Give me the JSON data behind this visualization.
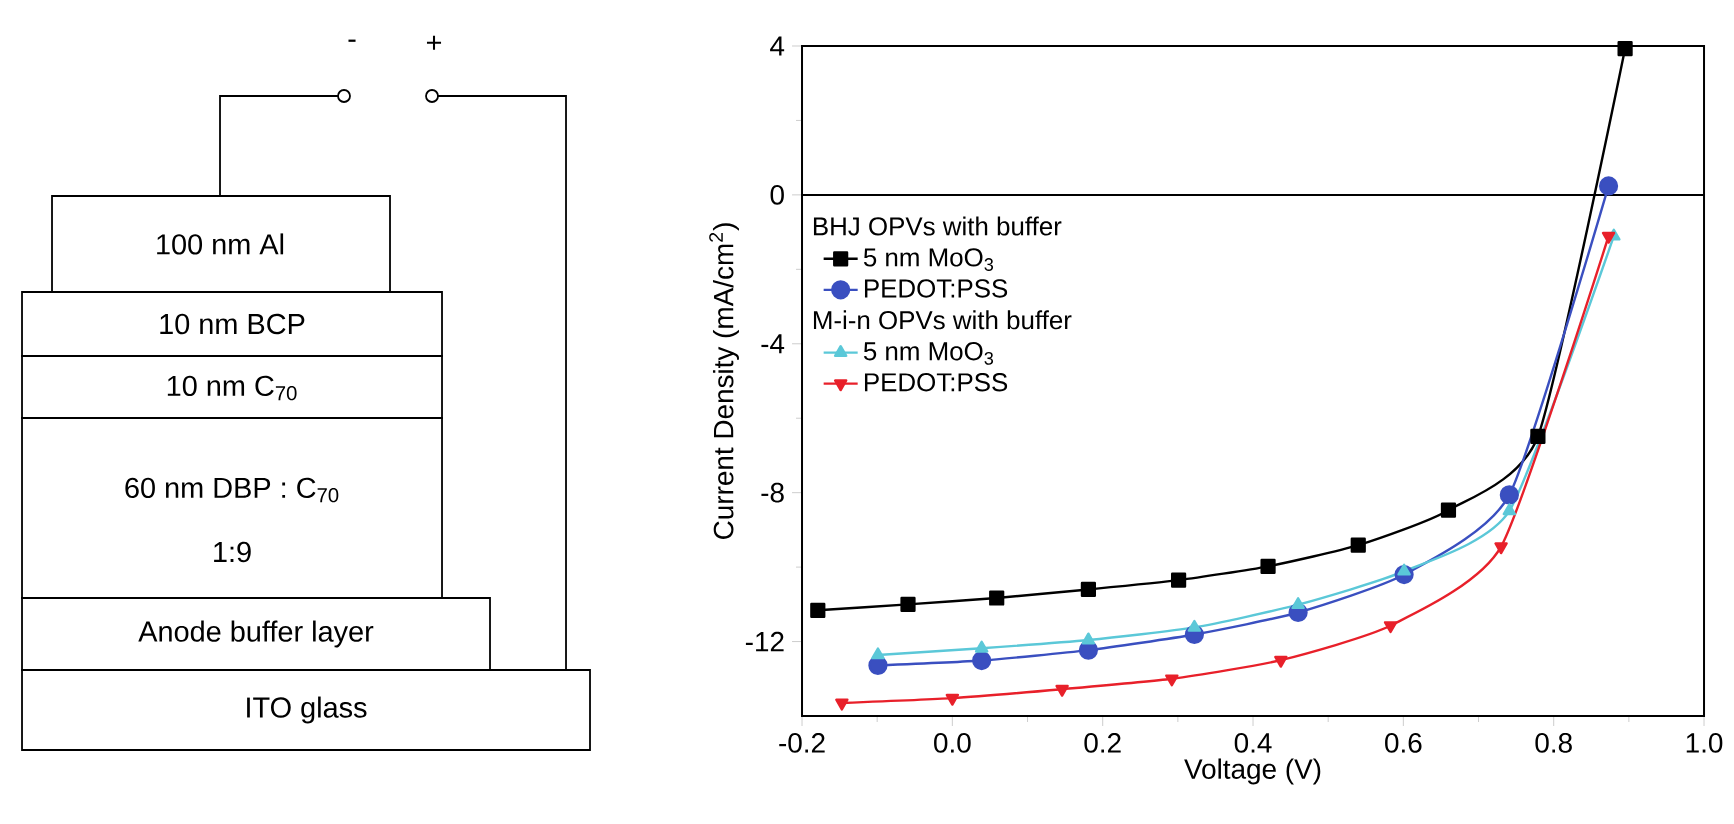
{
  "chart_data": [
    {
      "type": "other",
      "annotations": [
        "100 nm Al",
        "10 nm BCP",
        "10 nm C$_{70}$",
        "60 nm DBP : C$_{70}$",
        "1:9",
        "Anode buffer layer",
        "ITO glass",
        "-",
        "+"
      ]
    },
    {
      "type": "line",
      "xlabel": "Voltage (V)",
      "ylabel": "Current Density (mA/cm$^{2}$)",
      "xlim": [
        -0.2,
        1.0
      ],
      "xticks": [
        {
          "value": -0.2,
          "label": "-0.2"
        },
        {
          "value": 0,
          "label": "0.0"
        },
        0.2,
        0.4,
        0.6,
        0.8,
        {
          "value": 1.0,
          "label": "1.0"
        }
      ],
      "ylim": [
        -14,
        4
      ],
      "yticks": [
        -12,
        -8,
        -4,
        0,
        4
      ],
      "annotations": [
        "BHJ OPVs with buffer",
        "M-i-n OPVs with buffer"
      ],
      "ref_lines": [
        {
          "axis": "y",
          "value": 0,
          "color": "#000000"
        }
      ],
      "legend": "left",
      "grid": false,
      "series": [
        {
          "name": "5 nm MoO$_{3}$",
          "color": "#000000",
          "marker": "square",
          "x": [
            -0.179,
            -0.059,
            0.059,
            0.181,
            0.301,
            0.42,
            0.54,
            0.66,
            0.779,
            0.895
          ],
          "values": [
            -11.16,
            -11.0,
            -10.83,
            -10.6,
            -10.35,
            -9.98,
            -9.41,
            -8.47,
            -6.49,
            3.93
          ]
        },
        {
          "name": "PEDOT:PSS",
          "color": "#3a4fc0",
          "marker": "circle",
          "x": [
            -0.099,
            0.039,
            0.181,
            0.322,
            0.46,
            0.601,
            0.741,
            0.873
          ],
          "values": [
            -12.64,
            -12.51,
            -12.23,
            -11.81,
            -11.22,
            -10.2,
            -8.06,
            0.24
          ]
        },
        {
          "name": "5 nm MoO$_{3}$",
          "color": "#5bc8d8",
          "marker": "triangle",
          "x": [
            -0.099,
            0.039,
            0.181,
            0.322,
            0.46,
            0.601,
            0.741,
            0.88
          ],
          "values": [
            -12.36,
            -12.18,
            -11.96,
            -11.62,
            -11.01,
            -10.11,
            -8.49,
            -1.11
          ]
        },
        {
          "name": "PEDOT:PSS",
          "color": "#e8202a",
          "marker": "triangle-down",
          "x": [
            -0.147,
            0.0,
            0.146,
            0.292,
            0.437,
            0.583,
            0.73,
            0.873
          ],
          "values": [
            -13.65,
            -13.52,
            -13.28,
            -13.0,
            -12.5,
            -11.57,
            -9.45,
            -1.11
          ]
        }
      ]
    }
  ]
}
